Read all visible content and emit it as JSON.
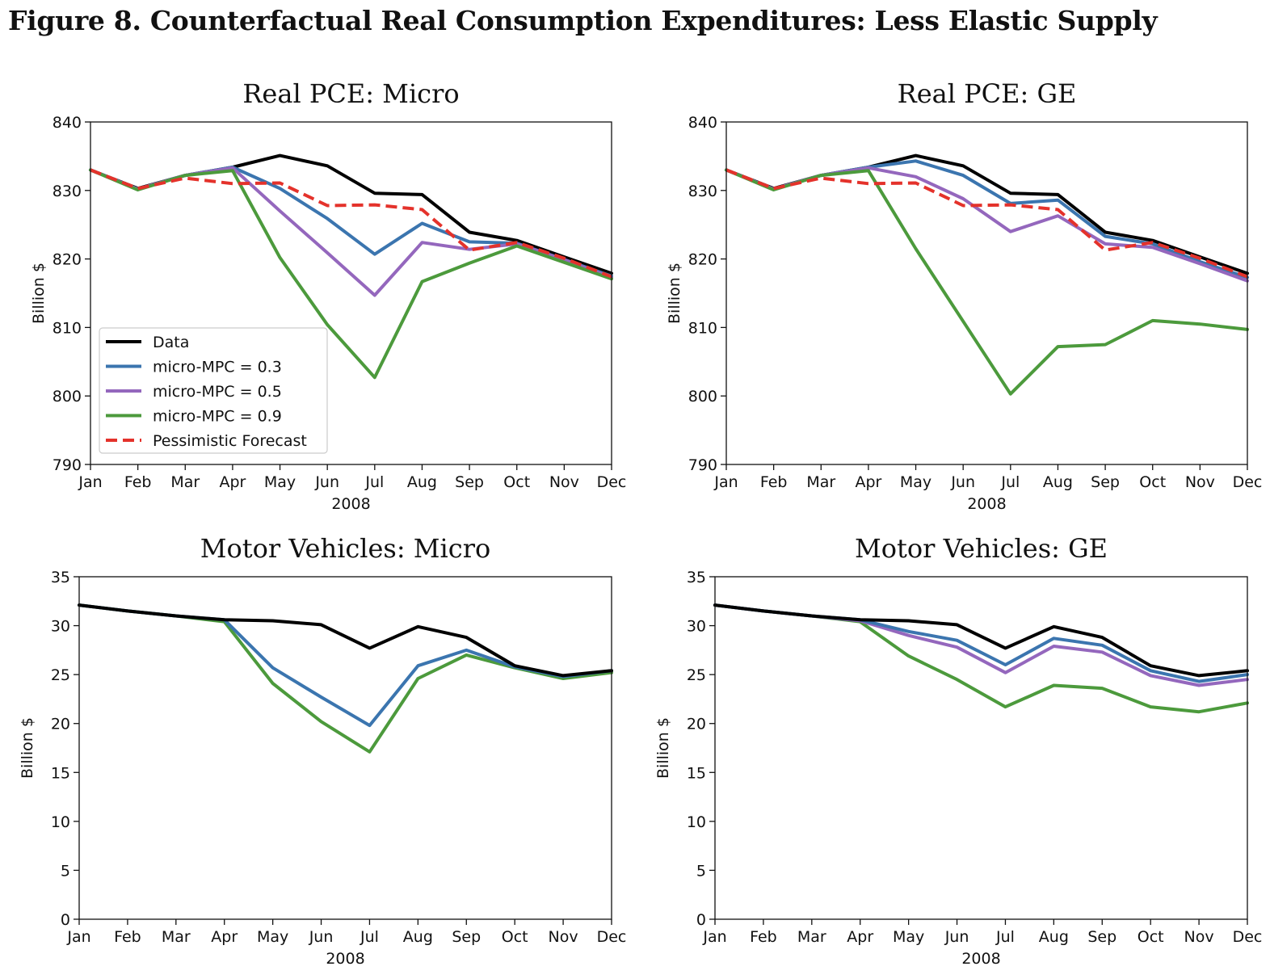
{
  "figure_title": "Figure 8.  Counterfactual Real Consumption Expenditures:  Less Elastic Supply",
  "colors": {
    "data": "#000000",
    "micro_mpc_03": "#3b75af",
    "micro_mpc_05": "#9467bd",
    "micro_mpc_09": "#4c9a3c",
    "pessimistic": "#e4322b"
  },
  "chart_data": [
    {
      "type": "line",
      "title": "Real PCE: Micro",
      "xlabel": "2008",
      "ylabel": "Billion $",
      "categories": [
        "Jan",
        "Feb",
        "Mar",
        "Apr",
        "May",
        "Jun",
        "Jul",
        "Aug",
        "Sep",
        "Oct",
        "Nov",
        "Dec"
      ],
      "ylim": [
        790,
        840
      ],
      "yticks": [
        790,
        800,
        810,
        820,
        830,
        840
      ],
      "grid": false,
      "legend": "lower-left",
      "series": [
        {
          "name": "Data",
          "color": "#000000",
          "dash": false,
          "values": [
            833.0,
            830.3,
            832.2,
            833.4,
            835.1,
            833.6,
            829.6,
            829.4,
            823.9,
            822.7,
            820.3,
            817.9
          ]
        },
        {
          "name": "micro-MPC = 0.3",
          "color": "#3b75af",
          "dash": false,
          "values": [
            833.0,
            830.2,
            832.2,
            833.4,
            830.3,
            825.9,
            820.7,
            825.2,
            822.5,
            822.3,
            819.9,
            817.5
          ]
        },
        {
          "name": "micro-MPC = 0.5",
          "color": "#9467bd",
          "dash": false,
          "values": [
            833.0,
            830.2,
            832.2,
            833.3,
            827.0,
            820.9,
            814.7,
            822.4,
            821.4,
            822.2,
            819.9,
            817.3
          ]
        },
        {
          "name": "micro-MPC = 0.9",
          "color": "#4c9a3c",
          "dash": false,
          "values": [
            833.0,
            830.1,
            832.2,
            832.9,
            820.2,
            810.4,
            802.7,
            816.7,
            819.4,
            821.9,
            819.5,
            817.1
          ]
        },
        {
          "name": "Pessimistic Forecast",
          "color": "#e4322b",
          "dash": true,
          "values": [
            833.0,
            830.3,
            831.8,
            831.0,
            831.1,
            827.8,
            827.9,
            827.2,
            821.3,
            822.4,
            820.1,
            817.4
          ]
        }
      ]
    },
    {
      "type": "line",
      "title": "Real PCE: GE",
      "xlabel": "2008",
      "ylabel": "Billion $",
      "categories": [
        "Jan",
        "Feb",
        "Mar",
        "Apr",
        "May",
        "Jun",
        "Jul",
        "Aug",
        "Sep",
        "Oct",
        "Nov",
        "Dec"
      ],
      "ylim": [
        790,
        840
      ],
      "yticks": [
        790,
        800,
        810,
        820,
        830,
        840
      ],
      "grid": false,
      "legend": "none",
      "series": [
        {
          "name": "Data",
          "color": "#000000",
          "dash": false,
          "values": [
            833.0,
            830.3,
            832.2,
            833.4,
            835.1,
            833.6,
            829.6,
            829.4,
            823.9,
            822.7,
            820.3,
            817.9
          ]
        },
        {
          "name": "micro-MPC = 0.3",
          "color": "#3b75af",
          "dash": false,
          "values": [
            833.0,
            830.2,
            832.2,
            833.4,
            834.3,
            832.2,
            828.1,
            828.6,
            823.3,
            822.2,
            819.6,
            817.3
          ]
        },
        {
          "name": "micro-MPC = 0.5",
          "color": "#9467bd",
          "dash": false,
          "values": [
            833.0,
            830.2,
            832.2,
            833.3,
            832.0,
            828.8,
            824.0,
            826.3,
            822.2,
            821.7,
            819.3,
            816.8
          ]
        },
        {
          "name": "micro-MPC = 0.9",
          "color": "#4c9a3c",
          "dash": false,
          "values": [
            833.0,
            830.1,
            832.2,
            832.9,
            821.5,
            810.9,
            800.3,
            807.2,
            807.5,
            811.0,
            810.5,
            809.7
          ]
        },
        {
          "name": "Pessimistic Forecast",
          "color": "#e4322b",
          "dash": true,
          "values": [
            833.0,
            830.3,
            831.8,
            831.0,
            831.1,
            827.8,
            827.9,
            827.2,
            821.3,
            822.4,
            820.1,
            817.4
          ]
        }
      ]
    },
    {
      "type": "line",
      "title": "Motor Vehicles:  Micro",
      "xlabel": "2008",
      "ylabel": "Billion $",
      "categories": [
        "Jan",
        "Feb",
        "Mar",
        "Apr",
        "May",
        "Jun",
        "Jul",
        "Aug",
        "Sep",
        "Oct",
        "Nov",
        "Dec"
      ],
      "ylim": [
        0,
        35
      ],
      "yticks": [
        0,
        5,
        10,
        15,
        20,
        25,
        30,
        35
      ],
      "grid": false,
      "legend": "none",
      "series": [
        {
          "name": "micro-MPC = 0.9",
          "color": "#4c9a3c",
          "dash": false,
          "values": [
            32.1,
            31.5,
            31.0,
            30.4,
            24.1,
            20.2,
            17.1,
            24.6,
            27.0,
            25.7,
            24.6,
            25.2
          ]
        },
        {
          "name": "micro-MPC = 0.3",
          "color": "#3b75af",
          "dash": false,
          "values": [
            32.1,
            31.5,
            31.0,
            30.6,
            25.7,
            22.7,
            19.8,
            25.9,
            27.5,
            25.8,
            24.8,
            25.4
          ]
        },
        {
          "name": "Data",
          "color": "#000000",
          "dash": false,
          "values": [
            32.1,
            31.5,
            31.0,
            30.6,
            30.5,
            30.1,
            27.7,
            29.9,
            28.8,
            25.9,
            24.9,
            25.4
          ]
        }
      ]
    },
    {
      "type": "line",
      "title": "Motor Vehicles:  GE",
      "xlabel": "2008",
      "ylabel": "Billion $",
      "categories": [
        "Jan",
        "Feb",
        "Mar",
        "Apr",
        "May",
        "Jun",
        "Jul",
        "Aug",
        "Sep",
        "Oct",
        "Nov",
        "Dec"
      ],
      "ylim": [
        0,
        35
      ],
      "yticks": [
        0,
        5,
        10,
        15,
        20,
        25,
        30,
        35
      ],
      "grid": false,
      "legend": "none",
      "series": [
        {
          "name": "micro-MPC = 0.9",
          "color": "#4c9a3c",
          "dash": false,
          "values": [
            32.1,
            31.5,
            31.0,
            30.4,
            26.9,
            24.5,
            21.7,
            23.9,
            23.6,
            21.7,
            21.2,
            22.1
          ]
        },
        {
          "name": "micro-MPC = 0.5",
          "color": "#9467bd",
          "dash": false,
          "values": [
            32.1,
            31.5,
            31.0,
            30.5,
            29.0,
            27.8,
            25.2,
            27.9,
            27.3,
            24.9,
            23.9,
            24.5
          ]
        },
        {
          "name": "micro-MPC = 0.3",
          "color": "#3b75af",
          "dash": false,
          "values": [
            32.1,
            31.5,
            31.0,
            30.6,
            29.4,
            28.5,
            26.0,
            28.7,
            28.0,
            25.4,
            24.3,
            25.0
          ]
        },
        {
          "name": "Data",
          "color": "#000000",
          "dash": false,
          "values": [
            32.1,
            31.5,
            31.0,
            30.6,
            30.5,
            30.1,
            27.7,
            29.9,
            28.8,
            25.9,
            24.9,
            25.4
          ]
        }
      ]
    }
  ]
}
